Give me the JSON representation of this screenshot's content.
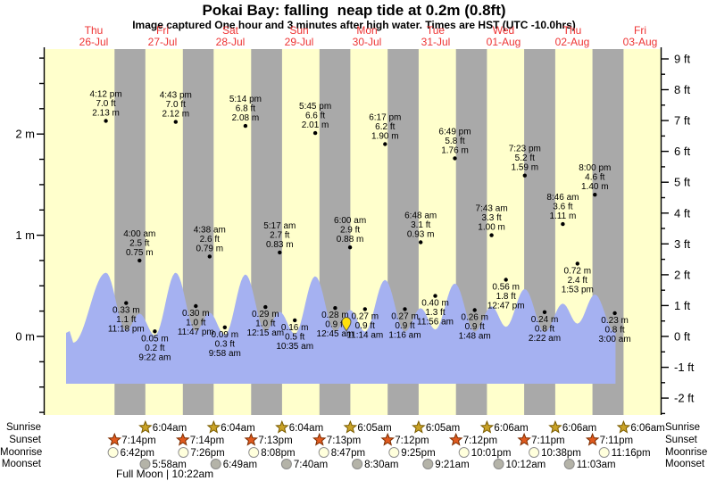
{
  "title": "Pokai Bay: falling  neap tide at 0.2m (0.8ft)",
  "subtitle": "Image captured One hour and 3 minutes after high water. Times are HST (UTC -10.0hrs)",
  "moon_phase": "Full Moon | 10:22am",
  "colors": {
    "day_band": "#ffffcc",
    "night_band": "#a9a9a9",
    "tide_fill": "#a5b1f1",
    "day_label_red": "#ee3333",
    "sunrise_star_fill": "#c9a227",
    "sunrise_star_stroke": "#7a5c00",
    "sunset_star_fill": "#e05a1f",
    "sunset_star_stroke": "#7d2d00",
    "moonrise_fill": "#ffffdc",
    "moonrise_stroke": "#909090",
    "moonset_fill": "#b4b3a8",
    "moonset_stroke": "#8a8a8a",
    "marker_yellow": "#ffe10a",
    "axis_black": "#000000"
  },
  "chart_data": {
    "type": "area",
    "title": "Pokai Bay tide curve, 26-Jul to 03-Aug",
    "xlabel": "day",
    "ylabel_left": "height (m)",
    "ylabel_right": "height (ft)",
    "grid": false,
    "days": [
      {
        "dow": "Thu",
        "date": "26-Jul"
      },
      {
        "dow": "Fri",
        "date": "27-Jul"
      },
      {
        "dow": "Sat",
        "date": "28-Jul"
      },
      {
        "dow": "Sun",
        "date": "29-Jul"
      },
      {
        "dow": "Mon",
        "date": "30-Jul"
      },
      {
        "dow": "Tue",
        "date": "31-Jul"
      },
      {
        "dow": "Wed",
        "date": "01-Aug"
      },
      {
        "dow": "Thu",
        "date": "02-Aug"
      },
      {
        "dow": "Fri",
        "date": "03-Aug"
      }
    ],
    "y_axis_left": {
      "unit": "m",
      "tick_values": [
        0,
        1,
        2
      ],
      "tick_labels": [
        "0 m",
        "1 m",
        "2 m"
      ]
    },
    "y_axis_right": {
      "unit": "ft",
      "min": -2,
      "max": 9,
      "tick_labels": [
        "9 ft",
        "8 ft",
        "7 ft",
        "6 ft",
        "5 ft",
        "4 ft",
        "3 ft",
        "2 ft",
        "1 ft",
        "0 ft",
        "-1 ft",
        "-2 ft"
      ]
    },
    "tide_events": [
      {
        "day": 0,
        "time": "4:12 pm",
        "ft": "7.0",
        "m": "2.13",
        "kind": "high"
      },
      {
        "day": 0,
        "time": "11:18 pm",
        "ft": "1.1",
        "m": "0.33",
        "kind": "low"
      },
      {
        "day": 1,
        "time": "4:00 am",
        "ft": "2.5",
        "m": "0.75",
        "kind": "high"
      },
      {
        "day": 1,
        "time": "9:22 am",
        "ft": "0.2",
        "m": "0.05",
        "kind": "low"
      },
      {
        "day": 1,
        "time": "4:43 pm",
        "ft": "7.0",
        "m": "2.12",
        "kind": "high"
      },
      {
        "day": 1,
        "time": "11:47 pm",
        "ft": "1.0",
        "m": "0.30",
        "kind": "low"
      },
      {
        "day": 2,
        "time": "4:38 am",
        "ft": "2.6",
        "m": "0.79",
        "kind": "high"
      },
      {
        "day": 2,
        "time": "9:58 am",
        "ft": "0.3",
        "m": "0.09",
        "kind": "low"
      },
      {
        "day": 2,
        "time": "5:14 pm",
        "ft": "6.8",
        "m": "2.08",
        "kind": "high"
      },
      {
        "day": 3,
        "time": "12:15 am",
        "ft": "1.0",
        "m": "0.29",
        "kind": "low"
      },
      {
        "day": 3,
        "time": "5:17 am",
        "ft": "2.7",
        "m": "0.83",
        "kind": "high"
      },
      {
        "day": 3,
        "time": "10:35 am",
        "ft": "0.5",
        "m": "0.16",
        "kind": "low"
      },
      {
        "day": 3,
        "time": "5:45 pm",
        "ft": "6.6",
        "m": "2.01",
        "kind": "high"
      },
      {
        "day": 4,
        "time": "12:45 am",
        "ft": "0.9",
        "m": "0.28",
        "kind": "low"
      },
      {
        "day": 4,
        "time": "6:00 am",
        "ft": "2.9",
        "m": "0.88",
        "kind": "high"
      },
      {
        "day": 4,
        "time": "11:14 am",
        "ft": "0.9",
        "m": "0.27",
        "kind": "low"
      },
      {
        "day": 4,
        "time": "6:17 pm",
        "ft": "6.2",
        "m": "1.90",
        "kind": "high"
      },
      {
        "day": 5,
        "time": "1:16 am",
        "ft": "0.9",
        "m": "0.27",
        "kind": "low"
      },
      {
        "day": 5,
        "time": "6:48 am",
        "ft": "3.1",
        "m": "0.93",
        "kind": "high"
      },
      {
        "day": 5,
        "time": "11:56 am",
        "ft": "1.3",
        "m": "0.40",
        "kind": "low"
      },
      {
        "day": 5,
        "time": "6:49 pm",
        "ft": "5.8",
        "m": "1.76",
        "kind": "high"
      },
      {
        "day": 6,
        "time": "1:48 am",
        "ft": "0.9",
        "m": "0.26",
        "kind": "low"
      },
      {
        "day": 6,
        "time": "7:43 am",
        "ft": "3.3",
        "m": "1.00",
        "kind": "high"
      },
      {
        "day": 6,
        "time": "12:47 pm",
        "ft": "1.8",
        "m": "0.56",
        "kind": "low"
      },
      {
        "day": 6,
        "time": "7:23 pm",
        "ft": "5.2",
        "m": "1.59",
        "kind": "high"
      },
      {
        "day": 7,
        "time": "2:22 am",
        "ft": "0.8",
        "m": "0.24",
        "kind": "low"
      },
      {
        "day": 7,
        "time": "8:46 am",
        "ft": "3.6",
        "m": "1.11",
        "kind": "high"
      },
      {
        "day": 7,
        "time": "1:53 pm",
        "ft": "2.4",
        "m": "0.72",
        "kind": "low"
      },
      {
        "day": 7,
        "time": "8:00 pm",
        "ft": "4.6",
        "m": "1.40",
        "kind": "high"
      },
      {
        "day": 8,
        "time": "3:00 am",
        "ft": "0.8",
        "m": "0.23",
        "kind": "low"
      }
    ],
    "capture_marker": {
      "shown": true,
      "symbol": "yellow-pin",
      "x_hours_from_start": 100.7
    }
  },
  "astro": {
    "row_labels": [
      "Sunrise",
      "Sunset",
      "Moonrise",
      "Moonset"
    ],
    "sunrise": [
      {
        "day": 1,
        "time": "6:04am"
      },
      {
        "day": 2,
        "time": "6:04am"
      },
      {
        "day": 3,
        "time": "6:04am"
      },
      {
        "day": 4,
        "time": "6:05am"
      },
      {
        "day": 5,
        "time": "6:05am"
      },
      {
        "day": 6,
        "time": "6:06am"
      },
      {
        "day": 7,
        "time": "6:06am"
      },
      {
        "day": 8,
        "time": "6:06am"
      }
    ],
    "sunset": [
      {
        "day": 0,
        "time": "7:14pm"
      },
      {
        "day": 1,
        "time": "7:14pm"
      },
      {
        "day": 2,
        "time": "7:13pm"
      },
      {
        "day": 3,
        "time": "7:13pm"
      },
      {
        "day": 4,
        "time": "7:12pm"
      },
      {
        "day": 5,
        "time": "7:12pm"
      },
      {
        "day": 6,
        "time": "7:11pm"
      },
      {
        "day": 7,
        "time": "7:11pm"
      }
    ],
    "moonrise": [
      {
        "day": 0,
        "time": "6:42pm"
      },
      {
        "day": 1,
        "time": "7:26pm"
      },
      {
        "day": 2,
        "time": "8:08pm"
      },
      {
        "day": 3,
        "time": "8:47pm"
      },
      {
        "day": 4,
        "time": "9:25pm"
      },
      {
        "day": 5,
        "time": "10:01pm"
      },
      {
        "day": 6,
        "time": "10:38pm"
      },
      {
        "day": 7,
        "time": "11:16pm"
      }
    ],
    "moonset": [
      {
        "day": 1,
        "time": "5:58am"
      },
      {
        "day": 2,
        "time": "6:49am"
      },
      {
        "day": 3,
        "time": "7:40am"
      },
      {
        "day": 4,
        "time": "8:30am"
      },
      {
        "day": 5,
        "time": "9:21am"
      },
      {
        "day": 6,
        "time": "10:12am"
      },
      {
        "day": 7,
        "time": "11:03am"
      }
    ]
  }
}
